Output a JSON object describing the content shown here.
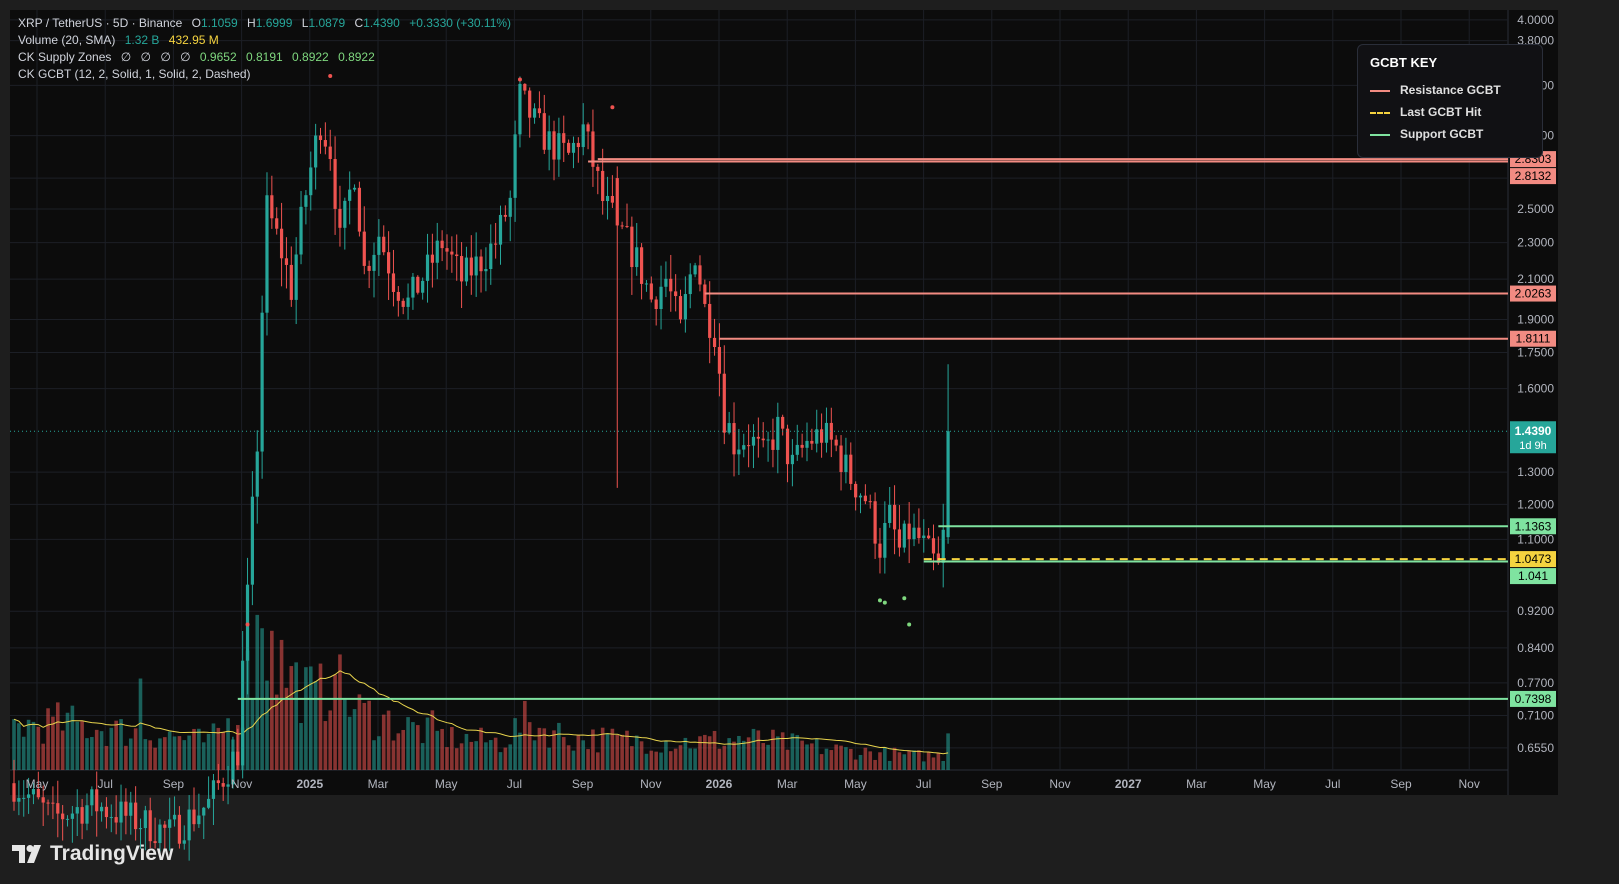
{
  "header": {
    "symbol": "XRP / TetherUS · 5D · Binance",
    "ohlc": [
      {
        "k": "O",
        "v": "1.1059"
      },
      {
        "k": "H",
        "v": "1.6999"
      },
      {
        "k": "L",
        "v": "1.0879"
      },
      {
        "k": "C",
        "v": "1.4390"
      }
    ],
    "change": "+0.3330 (+30.11%)",
    "volume_label": "Volume (20, SMA)",
    "volume_value": "1.32 B",
    "volume_sma": "432.95 M",
    "supply_label": "CK Supply Zones",
    "supply_empty": [
      "∅",
      "∅",
      "∅",
      "∅"
    ],
    "supply_values": [
      "0.9652",
      "0.8191",
      "0.8922",
      "0.8922"
    ],
    "gcbt_label": "CK GCBT (12, 2, Solid, 1, Solid, 2, Dashed)"
  },
  "legend": {
    "title": "GCBT KEY",
    "items": [
      {
        "label": "Resistance GCBT",
        "color": "#f28b82",
        "style": "solid"
      },
      {
        "label": "Last GCBT Hit",
        "color": "#f5d33f",
        "style": "dashed"
      },
      {
        "label": "Support GCBT",
        "color": "#7fe3a0",
        "style": "solid"
      }
    ]
  },
  "brand": {
    "name": "TradingView"
  },
  "colors": {
    "up": "#26a69a",
    "down": "#ef5350",
    "resistance": "#f28b82",
    "support": "#7fe3a0",
    "last_hit": "#f5d33f",
    "sma": "#e8d44d"
  },
  "chart_data": {
    "type": "candlestick",
    "y_scale": "log",
    "ylim": [
      0.62,
      4.1
    ],
    "y_ticks": [
      "4.0000",
      "3.8000",
      "3.4000",
      "3.0000",
      "2.7000",
      "2.5000",
      "2.3000",
      "2.1000",
      "1.9000",
      "1.7500",
      "1.6000",
      "1.4390",
      "1.3000",
      "1.2000",
      "1.1000",
      "0.9200",
      "0.8400",
      "0.7700",
      "0.7100",
      "0.6550"
    ],
    "x_ticks": [
      "May",
      "Jul",
      "Sep",
      "Nov",
      "2025",
      "Mar",
      "May",
      "Jul",
      "Sep",
      "Nov",
      "2026",
      "Mar",
      "May",
      "Jul",
      "Sep",
      "Nov",
      "2027",
      "Mar",
      "May",
      "Jul",
      "Sep",
      "Nov"
    ],
    "x_tick_bold": [
      "2025",
      "2026",
      "2027"
    ],
    "last_price": {
      "value": "1.4390",
      "countdown": "1d 9h"
    },
    "levels": [
      {
        "kind": "resistance",
        "value": 2.8303,
        "label": "2.8303",
        "from": 120
      },
      {
        "kind": "resistance",
        "value": 2.8132,
        "label": "2.8132",
        "from": 118
      },
      {
        "kind": "resistance",
        "value": 2.0263,
        "label": "2.0263",
        "from": 142
      },
      {
        "kind": "resistance",
        "value": 1.8111,
        "label": "1.8111",
        "from": 145
      },
      {
        "kind": "support",
        "value": 1.1363,
        "label": "1.1363",
        "from": 190
      },
      {
        "kind": "last_hit",
        "value": 1.0473,
        "label": "1.0473",
        "from": 187
      },
      {
        "kind": "support",
        "value": 1.041,
        "label": "1.041",
        "from": 187
      },
      {
        "kind": "support",
        "value": 0.7398,
        "label": "0.7398",
        "from": 46
      }
    ],
    "anchors": [
      {
        "i": 0,
        "p": 0.6
      },
      {
        "i": 8,
        "p": 0.55
      },
      {
        "i": 16,
        "p": 0.57
      },
      {
        "i": 24,
        "p": 0.55
      },
      {
        "i": 32,
        "p": 0.53
      },
      {
        "i": 40,
        "p": 0.57
      },
      {
        "i": 46,
        "p": 0.65
      },
      {
        "i": 48,
        "p": 0.95
      },
      {
        "i": 50,
        "p": 1.4
      },
      {
        "i": 52,
        "p": 2.5
      },
      {
        "i": 55,
        "p": 2.25
      },
      {
        "i": 57,
        "p": 2.05
      },
      {
        "i": 60,
        "p": 2.6
      },
      {
        "i": 63,
        "p": 3.1
      },
      {
        "i": 65,
        "p": 2.9
      },
      {
        "i": 67,
        "p": 2.3
      },
      {
        "i": 70,
        "p": 2.75
      },
      {
        "i": 72,
        "p": 2.15
      },
      {
        "i": 75,
        "p": 2.35
      },
      {
        "i": 78,
        "p": 2.1
      },
      {
        "i": 81,
        "p": 1.98
      },
      {
        "i": 85,
        "p": 2.15
      },
      {
        "i": 88,
        "p": 2.3
      },
      {
        "i": 92,
        "p": 2.1
      },
      {
        "i": 96,
        "p": 2.2
      },
      {
        "i": 99,
        "p": 2.3
      },
      {
        "i": 102,
        "p": 2.55
      },
      {
        "i": 104,
        "p": 3.3
      },
      {
        "i": 107,
        "p": 3.1
      },
      {
        "i": 110,
        "p": 2.95
      },
      {
        "i": 114,
        "p": 2.85
      },
      {
        "i": 117,
        "p": 3.05
      },
      {
        "i": 119,
        "p": 2.8
      },
      {
        "i": 121,
        "p": 2.55
      },
      {
        "i": 124,
        "p": 2.4
      },
      {
        "i": 128,
        "p": 2.2
      },
      {
        "i": 131,
        "p": 2.0
      },
      {
        "i": 134,
        "p": 2.1
      },
      {
        "i": 137,
        "p": 1.85
      },
      {
        "i": 140,
        "p": 2.25
      },
      {
        "i": 142,
        "p": 1.95
      },
      {
        "i": 144,
        "p": 1.85
      },
      {
        "i": 146,
        "p": 1.5
      },
      {
        "i": 148,
        "p": 1.4
      },
      {
        "i": 151,
        "p": 1.42
      },
      {
        "i": 154,
        "p": 1.35
      },
      {
        "i": 157,
        "p": 1.45
      },
      {
        "i": 160,
        "p": 1.32
      },
      {
        "i": 163,
        "p": 1.4
      },
      {
        "i": 166,
        "p": 1.43
      },
      {
        "i": 169,
        "p": 1.38
      },
      {
        "i": 172,
        "p": 1.28
      },
      {
        "i": 175,
        "p": 1.22
      },
      {
        "i": 178,
        "p": 1.08
      },
      {
        "i": 180,
        "p": 1.16
      },
      {
        "i": 182,
        "p": 1.07
      },
      {
        "i": 184,
        "p": 1.12
      },
      {
        "i": 186,
        "p": 1.1
      },
      {
        "i": 188,
        "p": 1.06
      },
      {
        "i": 190,
        "p": 1.02
      },
      {
        "i": 191,
        "p": 1.1059
      },
      {
        "i": 192,
        "p": 1.439
      }
    ],
    "special": [
      {
        "i": 124,
        "o": 2.7,
        "h": 2.78,
        "l": 1.25,
        "c": 2.4
      },
      {
        "i": 192,
        "o": 1.1059,
        "h": 1.6999,
        "l": 1.0879,
        "c": 1.439
      }
    ],
    "volume_anchors": [
      {
        "i": 0,
        "v": 0.55
      },
      {
        "i": 10,
        "v": 0.6
      },
      {
        "i": 20,
        "v": 0.5
      },
      {
        "i": 30,
        "v": 0.45
      },
      {
        "i": 40,
        "v": 0.35
      },
      {
        "i": 46,
        "v": 0.7
      },
      {
        "i": 50,
        "v": 1.6
      },
      {
        "i": 54,
        "v": 1.4
      },
      {
        "i": 58,
        "v": 1.1
      },
      {
        "i": 62,
        "v": 0.9
      },
      {
        "i": 66,
        "v": 1.1
      },
      {
        "i": 70,
        "v": 0.75
      },
      {
        "i": 80,
        "v": 0.55
      },
      {
        "i": 90,
        "v": 0.4
      },
      {
        "i": 100,
        "v": 0.35
      },
      {
        "i": 105,
        "v": 0.6
      },
      {
        "i": 115,
        "v": 0.4
      },
      {
        "i": 125,
        "v": 0.38
      },
      {
        "i": 140,
        "v": 0.35
      },
      {
        "i": 150,
        "v": 0.4
      },
      {
        "i": 170,
        "v": 0.25
      },
      {
        "i": 185,
        "v": 0.18
      },
      {
        "i": 191,
        "v": 0.18
      },
      {
        "i": 192,
        "v": 0.5
      }
    ],
    "volume_spikes": [
      {
        "i": 50,
        "v": 1.95
      },
      {
        "i": 53,
        "v": 1.75
      },
      {
        "i": 26,
        "v": 1.15
      },
      {
        "i": 66,
        "v": 1.2
      },
      {
        "i": 86,
        "v": 0.75
      }
    ],
    "supply_markers": [
      {
        "i": 65,
        "p": 3.48,
        "color": "#ef5350"
      },
      {
        "i": 104,
        "p": 3.45,
        "color": "#ef5350"
      },
      {
        "i": 123,
        "p": 3.22,
        "color": "#ef5350"
      },
      {
        "i": 48,
        "p": 0.89,
        "color": "#ef5350"
      },
      {
        "i": 178,
        "p": 0.945,
        "color": "#7fd87f"
      },
      {
        "i": 179,
        "p": 0.94,
        "color": "#7fd87f"
      },
      {
        "i": 183,
        "p": 0.95,
        "color": "#7fd87f"
      },
      {
        "i": 184,
        "p": 0.89,
        "color": "#7fd87f"
      }
    ]
  }
}
